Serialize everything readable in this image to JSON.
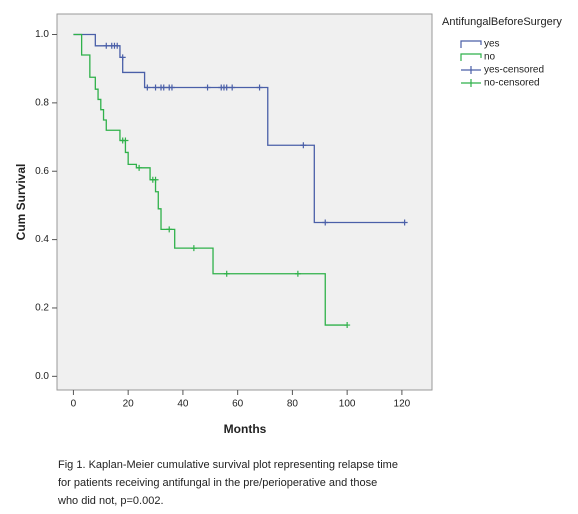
{
  "chart_data": {
    "type": "line",
    "step": true,
    "xlabel": "Months",
    "ylabel": "Cum Survival",
    "legend_title": "AntifungalBeforeSurgery",
    "legend_position": "upper right outside",
    "xlim": [
      -6,
      131
    ],
    "ylim": [
      -0.04,
      1.06
    ],
    "xticks": [
      0,
      20,
      40,
      60,
      80,
      100,
      120
    ],
    "yticks": [
      {
        "value": 0,
        "label": "0.0"
      },
      0.2,
      0.4,
      0.6,
      0.8,
      {
        "value": 1,
        "label": "1.0"
      }
    ],
    "series": [
      {
        "name": "yes",
        "color": "#4a5fa8",
        "x": [
          0,
          8,
          17,
          18,
          26,
          71,
          88,
          121
        ],
        "values": [
          1,
          0.967,
          0.933,
          0.889,
          0.845,
          0.676,
          0.45,
          0.45
        ]
      },
      {
        "name": "no",
        "color": "#2fb14a",
        "x": [
          0,
          3,
          6,
          8,
          9,
          10,
          11,
          12,
          17,
          19,
          20,
          23,
          28,
          30,
          31,
          32,
          37,
          51,
          92,
          100
        ],
        "values": [
          1,
          0.94,
          0.875,
          0.84,
          0.81,
          0.78,
          0.75,
          0.72,
          0.69,
          0.655,
          0.62,
          0.61,
          0.575,
          0.54,
          0.49,
          0.43,
          0.375,
          0.3,
          0.15,
          0.15
        ]
      },
      {
        "name": "yes-censored",
        "color": "#4a5fa8",
        "censored": true,
        "x": [
          12,
          14,
          15,
          16,
          18,
          27,
          30,
          32,
          33,
          35,
          36,
          49,
          54,
          55,
          56,
          58,
          68,
          84,
          92,
          121
        ],
        "values": [
          0.967,
          0.967,
          0.967,
          0.967,
          0.933,
          0.845,
          0.845,
          0.845,
          0.845,
          0.845,
          0.845,
          0.845,
          0.845,
          0.845,
          0.845,
          0.845,
          0.845,
          0.676,
          0.45,
          0.45
        ]
      },
      {
        "name": "no-censored",
        "color": "#2fb14a",
        "censored": true,
        "x": [
          18,
          19,
          24,
          29,
          30,
          35,
          44,
          56,
          82,
          100
        ],
        "values": [
          0.69,
          0.69,
          0.61,
          0.575,
          0.575,
          0.43,
          0.375,
          0.3,
          0.3,
          0.15
        ]
      }
    ],
    "caption": [
      "Fig 1. Kaplan-Meier cumulative survival plot representing relapse time",
      "for patients receiving antifungal in the pre/perioperative and those",
      "who did not, p=0.002."
    ]
  }
}
